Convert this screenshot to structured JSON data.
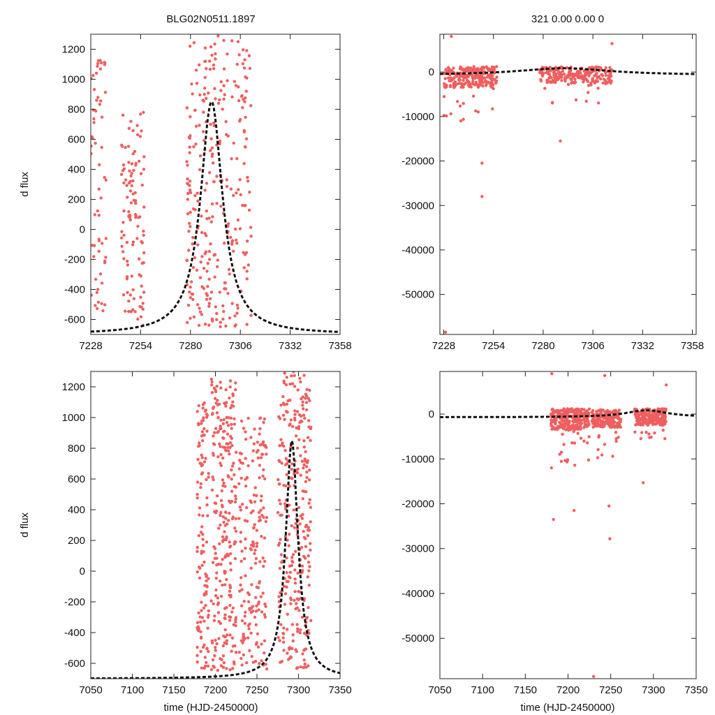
{
  "figure": {
    "title_left": "BLG02N0511.1897",
    "title_right": "321  0.00  0.00  0",
    "ylabel": "d flux",
    "xlabel": "time (HJD-2450000)",
    "point_color": "#ef5f5f",
    "model_color": "#111111",
    "frame_color": "#222222"
  },
  "chart_data": [
    {
      "id": "top-left",
      "type": "scatter",
      "title": "BLG02N0511.1897",
      "xlabel": "",
      "ylabel": "d flux",
      "xlim": [
        7228,
        7358
      ],
      "ylim": [
        -700,
        1300
      ],
      "xticks": [
        7228,
        7254,
        7280,
        7306,
        7332,
        7358
      ],
      "yticks": [
        -600,
        -400,
        -200,
        0,
        200,
        400,
        600,
        800,
        1000,
        1200
      ],
      "model": {
        "type": "peak",
        "t0": 7291,
        "peak": 850,
        "base": -700,
        "tau": 7,
        "pts": [
          7228,
          7240,
          7250,
          7260,
          7270,
          7278,
          7284,
          7288,
          7290,
          7291,
          7292,
          7294,
          7298,
          7304,
          7312,
          7322,
          7334,
          7346,
          7358
        ]
      },
      "clusters": [
        {
          "x": [
            7228,
            7236
          ],
          "y": [
            -650,
            1150
          ],
          "n": 60
        },
        {
          "x": [
            7244,
            7256
          ],
          "y": [
            -650,
            780
          ],
          "n": 110
        },
        {
          "x": [
            7278,
            7292
          ],
          "y": [
            -650,
            1250
          ],
          "n": 140
        },
        {
          "x": [
            7292,
            7312
          ],
          "y": [
            -650,
            1300
          ],
          "n": 150
        }
      ]
    },
    {
      "id": "top-right",
      "type": "scatter",
      "title": "321  0.00  0.00  0",
      "xlabel": "",
      "ylabel": "",
      "xlim": [
        7226,
        7360
      ],
      "ylim": [
        -59000,
        8500
      ],
      "xticks": [
        7228,
        7254,
        7280,
        7306,
        7332,
        7358
      ],
      "yticks": [
        -50000,
        -40000,
        -30000,
        -20000,
        -10000,
        0
      ],
      "model": {
        "type": "peak",
        "t0": 7291,
        "peak": 850,
        "base": -700,
        "tau": 30,
        "pts": [
          7226,
          7240,
          7255,
          7270,
          7282,
          7291,
          7300,
          7315,
          7330,
          7345,
          7360
        ]
      },
      "clusters": [
        {
          "x": [
            7228,
            7256
          ],
          "y": [
            -3500,
            1200
          ],
          "n": 220,
          "scatter": [
            -11000,
            0
          ],
          "ns": 18
        },
        {
          "x": [
            7278,
            7316
          ],
          "y": [
            -2500,
            1200
          ],
          "n": 220,
          "scatter": [
            -7000,
            0
          ],
          "ns": 14
        }
      ],
      "outliers": [
        [
          7229,
          -58500
        ],
        [
          7232,
          8000
        ],
        [
          7248,
          -20500
        ],
        [
          7248,
          -28000
        ],
        [
          7289,
          -15500
        ],
        [
          7316,
          6400
        ]
      ]
    },
    {
      "id": "bottom-left",
      "type": "scatter",
      "title": "",
      "xlabel": "time (HJD-2450000)",
      "ylabel": "d flux",
      "xlim": [
        7050,
        7350
      ],
      "ylim": [
        -700,
        1300
      ],
      "xticks": [
        7050,
        7100,
        7150,
        7200,
        7250,
        7300,
        7350
      ],
      "yticks": [
        -600,
        -400,
        -200,
        0,
        200,
        400,
        600,
        800,
        1000,
        1200
      ],
      "model": {
        "type": "peak",
        "t0": 7292,
        "peak": 850,
        "base": -700,
        "tau": 9,
        "pts": [
          7221,
          7232,
          7244,
          7256,
          7266,
          7274,
          7280,
          7285,
          7289,
          7291,
          7292,
          7293,
          7296,
          7300,
          7306,
          7314,
          7324,
          7336,
          7350
        ]
      },
      "clusters": [
        {
          "x": [
            7178,
            7192
          ],
          "y": [
            -650,
            1100
          ],
          "n": 120
        },
        {
          "x": [
            7195,
            7225
          ],
          "y": [
            -650,
            1250
          ],
          "n": 260
        },
        {
          "x": [
            7228,
            7262
          ],
          "y": [
            -650,
            1000
          ],
          "n": 180
        },
        {
          "x": [
            7275,
            7315
          ],
          "y": [
            -650,
            1300
          ],
          "n": 300
        }
      ]
    },
    {
      "id": "bottom-right",
      "type": "scatter",
      "title": "",
      "xlabel": "time (HJD-2450000)",
      "ylabel": "",
      "xlim": [
        7050,
        7350
      ],
      "ylim": [
        -59000,
        9500
      ],
      "xticks": [
        7050,
        7100,
        7150,
        7200,
        7250,
        7300,
        7350
      ],
      "yticks": [
        -50000,
        -40000,
        -30000,
        -20000,
        -10000,
        0
      ],
      "model": {
        "type": "peak",
        "t0": 7292,
        "peak": 850,
        "base": -700,
        "tau": 30,
        "pts": [
          7228,
          7240,
          7252,
          7264,
          7276,
          7286,
          7292,
          7300,
          7312,
          7326,
          7340,
          7350
        ]
      },
      "clusters": [
        {
          "x": [
            7180,
            7225
          ],
          "y": [
            -3500,
            1200
          ],
          "n": 260,
          "scatter": [
            -12000,
            0
          ],
          "ns": 24
        },
        {
          "x": [
            7228,
            7262
          ],
          "y": [
            -3000,
            1000
          ],
          "n": 180,
          "scatter": [
            -10000,
            0
          ],
          "ns": 14
        },
        {
          "x": [
            7278,
            7315
          ],
          "y": [
            -2500,
            1200
          ],
          "n": 220,
          "scatter": [
            -8000,
            0
          ],
          "ns": 14
        }
      ],
      "outliers": [
        [
          7181,
          9000
        ],
        [
          7183,
          -23500
        ],
        [
          7207,
          -21500
        ],
        [
          7243,
          8600
        ],
        [
          7230,
          -58500
        ],
        [
          7248,
          -20500
        ],
        [
          7249,
          -27800
        ],
        [
          7288,
          -15300
        ],
        [
          7315,
          6500
        ]
      ]
    }
  ]
}
